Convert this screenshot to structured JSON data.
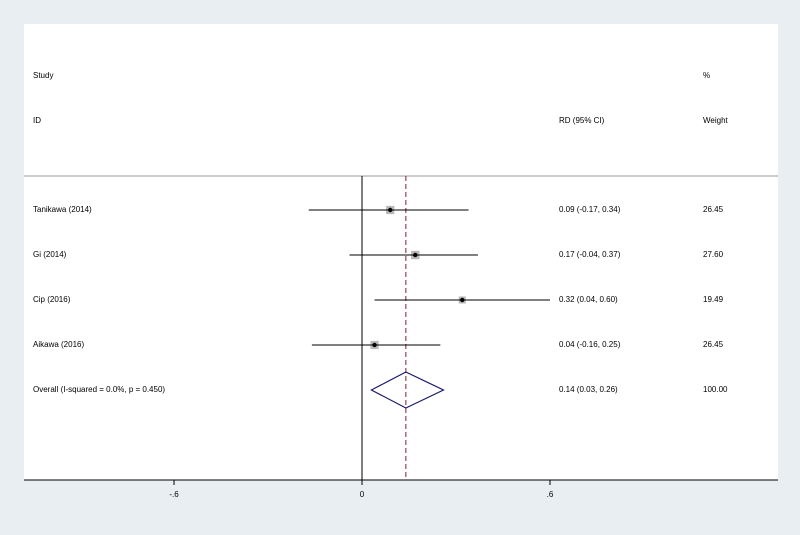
{
  "chart_data": {
    "type": "forest",
    "headers": {
      "study": "Study",
      "id": "ID",
      "ci": "RD (95% CI)",
      "pct": "%",
      "weight": "Weight"
    },
    "rows": [
      {
        "study": "Tanikawa  (2014)",
        "estimate": 0.09,
        "lower": -0.17,
        "upper": 0.34,
        "ci_label": "0.09 (-0.17, 0.34)",
        "weight": 26.45,
        "weight_label": "26.45"
      },
      {
        "study": "Gi (2014)",
        "estimate": 0.17,
        "lower": -0.04,
        "upper": 0.37,
        "ci_label": "0.17 (-0.04, 0.37)",
        "weight": 27.6,
        "weight_label": "27.60"
      },
      {
        "study": "Cip  (2016)",
        "estimate": 0.32,
        "lower": 0.04,
        "upper": 0.6,
        "ci_label": "0.32 (0.04, 0.60)",
        "weight": 19.49,
        "weight_label": "19.49"
      },
      {
        "study": "Aikawa (2016)",
        "estimate": 0.04,
        "lower": -0.16,
        "upper": 0.25,
        "ci_label": "0.04 (-0.16, 0.25)",
        "weight": 26.45,
        "weight_label": "26.45"
      }
    ],
    "overall": {
      "study": "Overall  (I-squared = 0.0%, p = 0.450)",
      "estimate": 0.14,
      "lower": 0.03,
      "upper": 0.26,
      "ci_label": "0.14 (0.03, 0.26)",
      "weight": 100,
      "weight_label": "100.00"
    },
    "xlim": [
      -1.0788,
      1.3277
    ],
    "xticks": [
      {
        "value": -0.6,
        "label": "-.6"
      },
      0,
      {
        "value": 0.6,
        "label": ".6"
      }
    ],
    "line_color": "#000000",
    "diamond_color": "#1a1a6e",
    "overall_line_color": "#8b1a2b",
    "marker_color": "#888888"
  }
}
